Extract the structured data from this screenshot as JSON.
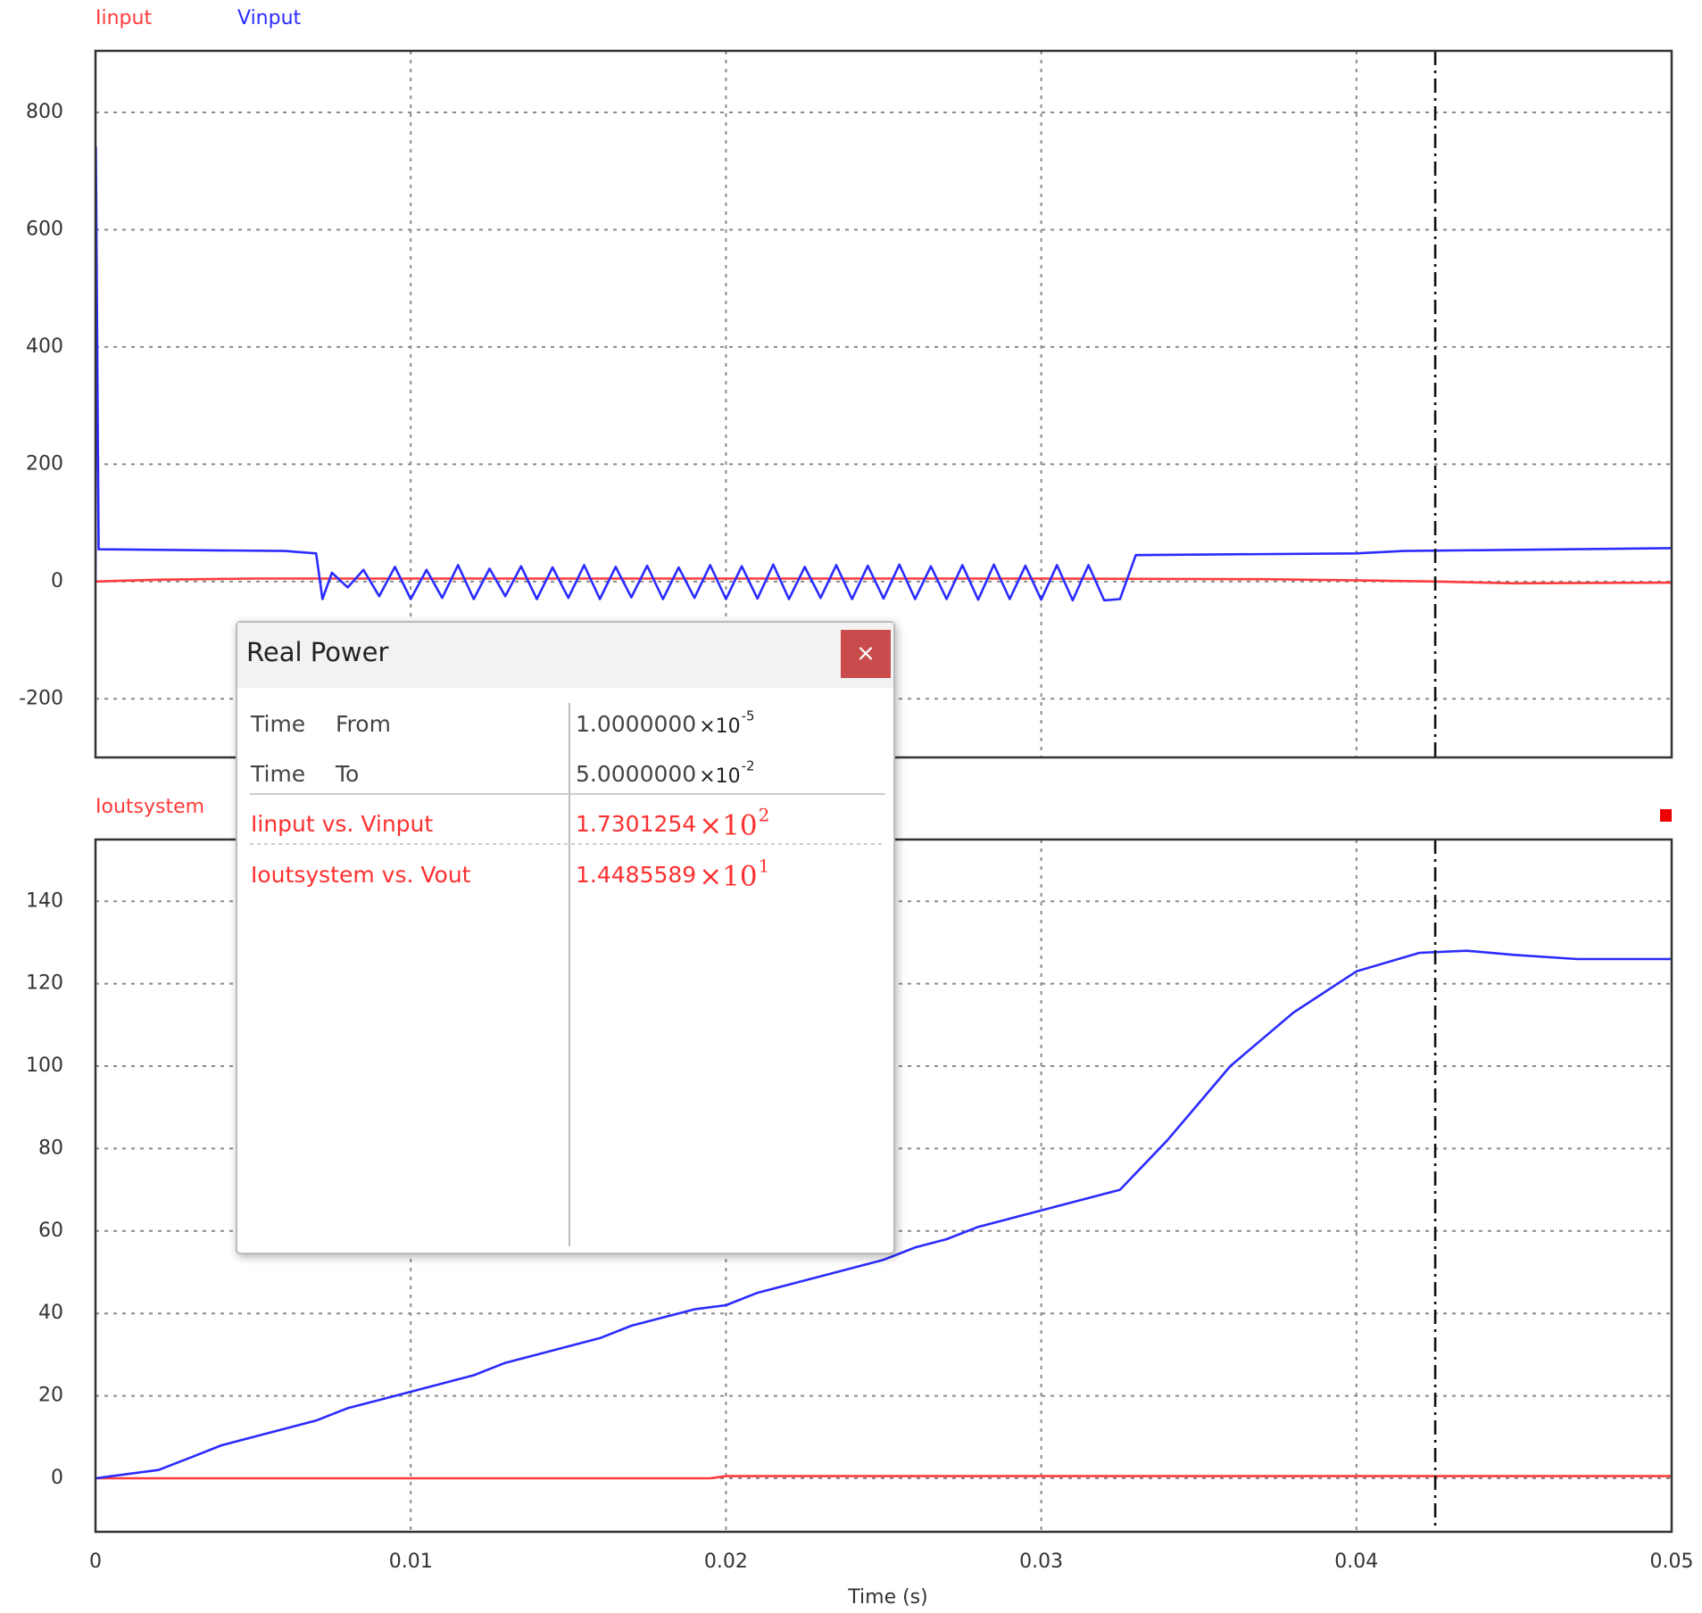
{
  "cursor_time": 0.0425,
  "chart_data": [
    {
      "type": "line",
      "xlim": [
        0,
        0.05
      ],
      "xticks": [
        0,
        0.01,
        0.02,
        0.03,
        0.04,
        0.05
      ],
      "xtick_labels": false,
      "ylim": [
        -300,
        905
      ],
      "yticks": [
        -200,
        0,
        200,
        400,
        600,
        800
      ],
      "grid": true,
      "series": [
        {
          "name": "Iinput",
          "color": "#ff3b3b",
          "x": [
            0,
            0.002,
            0.005,
            0.007,
            0.02,
            0.03,
            0.037,
            0.04,
            0.0425,
            0.045,
            0.05
          ],
          "values": [
            0,
            3,
            5,
            5,
            5,
            5,
            4,
            2,
            0,
            -3,
            -2
          ]
        },
        {
          "name": "Vinput",
          "color": "#2b2bff",
          "x": [
            0,
            1e-05,
            0.0001,
            0.006,
            0.007,
            0.0072,
            0.0075,
            0.008,
            0.0085,
            0.009,
            0.0095,
            0.01,
            0.0105,
            0.011,
            0.0115,
            0.012,
            0.0125,
            0.013,
            0.0135,
            0.014,
            0.0145,
            0.015,
            0.0155,
            0.016,
            0.0165,
            0.017,
            0.0175,
            0.018,
            0.0185,
            0.019,
            0.0195,
            0.02,
            0.0205,
            0.021,
            0.0215,
            0.022,
            0.0225,
            0.023,
            0.0235,
            0.024,
            0.0245,
            0.025,
            0.0255,
            0.026,
            0.0265,
            0.027,
            0.0275,
            0.028,
            0.0285,
            0.029,
            0.0295,
            0.03,
            0.0305,
            0.031,
            0.0315,
            0.032,
            0.0325,
            0.033,
            0.04,
            0.0415,
            0.05
          ],
          "values": [
            0,
            740,
            55,
            52,
            48,
            -30,
            15,
            -10,
            20,
            -25,
            25,
            -30,
            20,
            -28,
            28,
            -30,
            22,
            -25,
            26,
            -30,
            24,
            -28,
            28,
            -30,
            25,
            -27,
            27,
            -30,
            24,
            -28,
            28,
            -30,
            26,
            -29,
            29,
            -30,
            25,
            -28,
            28,
            -30,
            27,
            -29,
            29,
            -30,
            26,
            -30,
            28,
            -31,
            29,
            -30,
            27,
            -31,
            28,
            -32,
            28,
            -32,
            -30,
            45,
            48,
            52,
            57
          ]
        }
      ]
    },
    {
      "type": "line",
      "xlim": [
        0,
        0.05
      ],
      "xticks": [
        0,
        0.01,
        0.02,
        0.03,
        0.04,
        0.05
      ],
      "xlabel": "Time (s)",
      "ylim": [
        -13,
        155
      ],
      "yticks": [
        0,
        20,
        40,
        60,
        80,
        100,
        120,
        140
      ],
      "grid": true,
      "series": [
        {
          "name": "Ioutsystem",
          "color": "#ff3b3b",
          "x": [
            0,
            0.0195,
            0.02,
            0.05
          ],
          "values": [
            0,
            0,
            0.5,
            0.5
          ]
        },
        {
          "color": "#2b2bff",
          "x": [
            0,
            0.001,
            0.002,
            0.003,
            0.004,
            0.005,
            0.006,
            0.007,
            0.008,
            0.009,
            0.01,
            0.011,
            0.012,
            0.013,
            0.014,
            0.015,
            0.016,
            0.017,
            0.018,
            0.019,
            0.02,
            0.021,
            0.022,
            0.023,
            0.024,
            0.025,
            0.026,
            0.027,
            0.028,
            0.029,
            0.03,
            0.031,
            0.032,
            0.0325,
            0.034,
            0.036,
            0.038,
            0.04,
            0.042,
            0.0435,
            0.045,
            0.047,
            0.05
          ],
          "values": [
            0,
            1,
            2,
            5,
            8,
            10,
            12,
            14,
            17,
            19,
            21,
            23,
            25,
            28,
            30,
            32,
            34,
            37,
            39,
            41,
            42,
            45,
            47,
            49,
            51,
            53,
            56,
            58,
            61,
            63,
            65,
            67,
            69,
            70,
            82,
            100,
            113,
            123,
            127.5,
            128,
            127,
            126,
            126
          ]
        }
      ]
    }
  ],
  "dialog": {
    "title": "Real Power",
    "close": "×",
    "rows": [
      {
        "label": "Time",
        "sub": "From",
        "value": "1.0000000",
        "times": "×10",
        "exp": "-5"
      },
      {
        "label": "Time",
        "sub": "To",
        "value": "5.0000000",
        "times": "×10",
        "exp": "-2"
      },
      {
        "label": "Iinput vs. Vinput",
        "value": "1.7301254",
        "times": "×10",
        "exp": "2"
      },
      {
        "label": "Ioutsystem vs. Vout",
        "value": "1.4485589",
        "times": "×10",
        "exp": "1"
      }
    ]
  }
}
